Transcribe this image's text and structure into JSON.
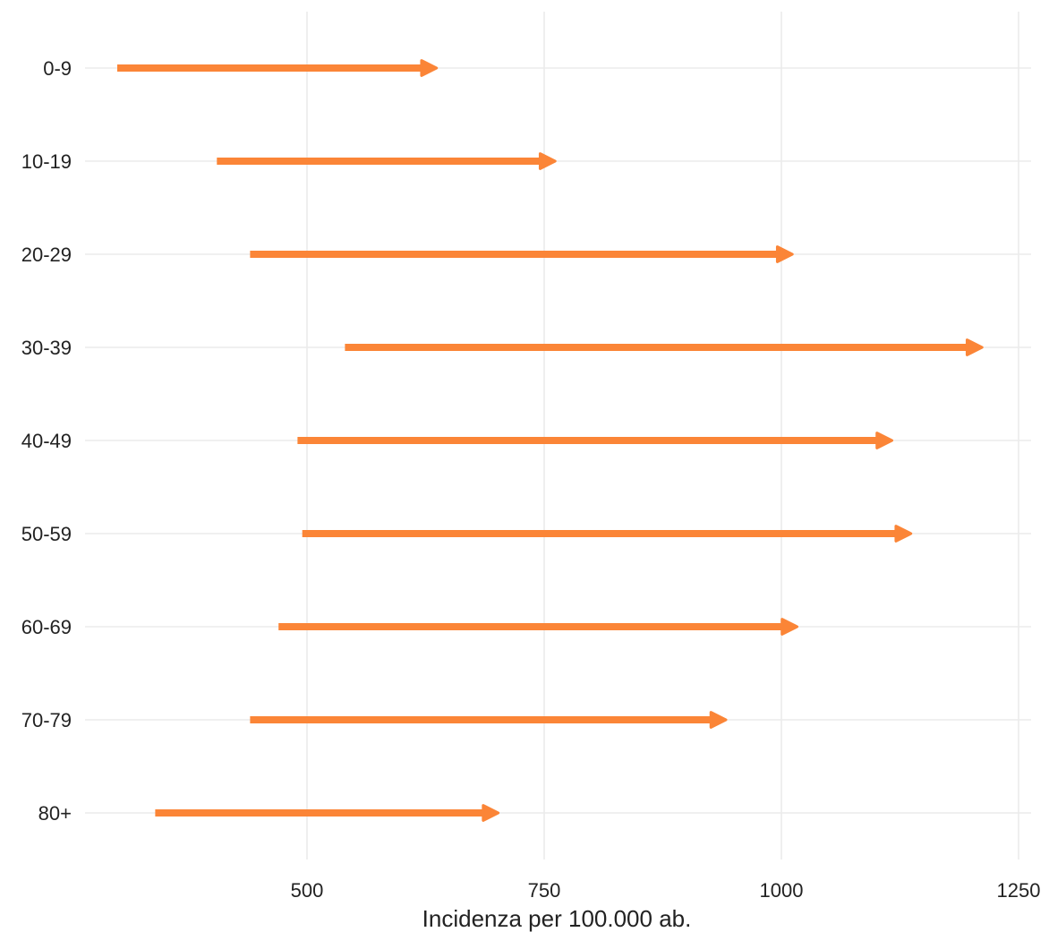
{
  "chart_data": {
    "type": "arrow",
    "xlabel": "Incidenza per 100.000 ab.",
    "ylabel": "",
    "xlim": [
      270,
      1250
    ],
    "xticks": [
      500,
      750,
      1000,
      1250
    ],
    "xtick_labels": [
      "500",
      "750",
      "1000",
      "1250"
    ],
    "grid": true,
    "categories": [
      "0-9",
      "10-19",
      "20-29",
      "30-39",
      "40-49",
      "50-59",
      "60-69",
      "70-79",
      "80+"
    ],
    "start": [
      300,
      405,
      440,
      540,
      490,
      495,
      470,
      440,
      340
    ],
    "end": [
      640,
      765,
      1015,
      1215,
      1120,
      1140,
      1020,
      945,
      705
    ],
    "color": "#fb8537"
  }
}
